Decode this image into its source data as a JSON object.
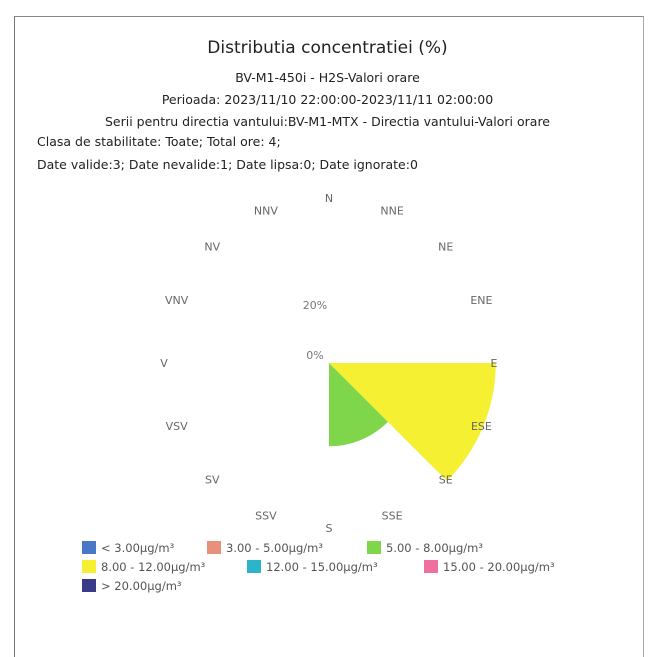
{
  "chart_data": {
    "type": "wind-rose",
    "title": "Distributia concentratiei (%)",
    "subtitle_lines": [
      "BV-M1-450i - H2S-Valori orare",
      "Perioada: 2023/11/10 22:00:00-2023/11/11 02:00:00",
      "Serii pentru directia vantului:BV-M1-MTX - Directia vantului-Valori orare"
    ],
    "info_lines": [
      "Clasa de stabilitate: Toate; Total ore: 4;",
      "Date valide:3; Date nevalide:1; Date lipsa:0; Date ignorate:0"
    ],
    "directions": [
      "N",
      "NNE",
      "NE",
      "ENE",
      "E",
      "ESE",
      "SE",
      "SSE",
      "S",
      "SSV",
      "SV",
      "VSV",
      "V",
      "VNV",
      "NV",
      "NNV"
    ],
    "radial_ticks": [
      "0%",
      "20%"
    ],
    "radial_max": 60,
    "bins": [
      {
        "label": "< 3.00µg/m³",
        "color": "#4a78c8"
      },
      {
        "label": "3.00 - 5.00µg/m³",
        "color": "#e8907a"
      },
      {
        "label": "5.00 - 8.00µg/m³",
        "color": "#7fd64a"
      },
      {
        "label": "8.00 - 12.00µg/m³",
        "color": "#f5f032"
      },
      {
        "label": "12.00 - 15.00µg/m³",
        "color": "#2bb5c8"
      },
      {
        "label": "15.00 - 20.00µg/m³",
        "color": "#ee6fa0"
      },
      {
        "label": "> 20.00µg/m³",
        "color": "#3a3a8a"
      }
    ],
    "sectors": [
      {
        "from": "E",
        "to": "SE",
        "percent": 66.7,
        "bin": "8.00 - 12.00µg/m³"
      },
      {
        "from": "SE",
        "to": "S",
        "percent": 33.3,
        "bin": "5.00 - 8.00µg/m³"
      }
    ]
  }
}
